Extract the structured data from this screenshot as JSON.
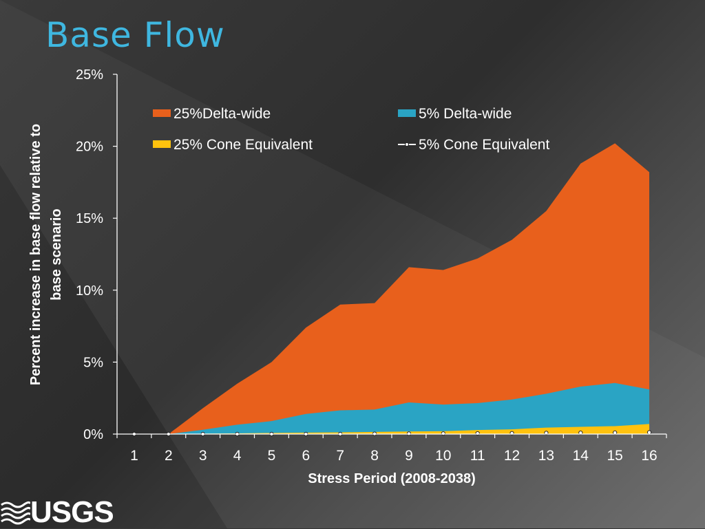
{
  "slide": {
    "title": "Base Flow"
  },
  "logo": {
    "text": "USGS"
  },
  "colors": {
    "title": "#3fb7e0",
    "delta25": "#e8601c",
    "delta5": "#2aa4c4",
    "cone25": "#ffc20e",
    "cone5": "#ffffff"
  },
  "chart_data": {
    "type": "area",
    "xlabel": "Stress Period (2008-2038)",
    "ylabel": "Percent increase in base flow relative to base scenario",
    "ylabel_lines": [
      "Percent increase in base flow relative to",
      "base scenario"
    ],
    "categories": [
      "1",
      "2",
      "3",
      "4",
      "5",
      "6",
      "7",
      "8",
      "9",
      "10",
      "11",
      "12",
      "13",
      "14",
      "15",
      "16"
    ],
    "ylim": [
      0,
      25
    ],
    "yticks": [
      "0%",
      "5%",
      "10%",
      "15%",
      "20%",
      "25%"
    ],
    "grid": false,
    "legend_placement": "top",
    "series": [
      {
        "name": "25%Delta-wide",
        "style": "area",
        "values": [
          0,
          0,
          1.8,
          3.5,
          5.0,
          7.4,
          9.0,
          9.1,
          11.6,
          11.4,
          12.2,
          13.5,
          15.5,
          18.8,
          20.2,
          18.2
        ]
      },
      {
        "name": "5% Delta-wide",
        "style": "area",
        "values": [
          0,
          0,
          0.3,
          0.65,
          0.9,
          1.4,
          1.65,
          1.7,
          2.2,
          2.05,
          2.15,
          2.4,
          2.8,
          3.3,
          3.55,
          3.1
        ]
      },
      {
        "name": "25% Cone Equivalent",
        "style": "area",
        "values": [
          0,
          0,
          0.03,
          0.05,
          0.08,
          0.1,
          0.12,
          0.15,
          0.18,
          0.2,
          0.28,
          0.33,
          0.45,
          0.5,
          0.55,
          0.7
        ]
      },
      {
        "name": "5% Cone Equivalent",
        "style": "line-marker",
        "values": [
          0,
          0,
          0,
          0,
          0,
          0,
          0,
          0.02,
          0.03,
          0.04,
          0.05,
          0.06,
          0.08,
          0.09,
          0.1,
          0.12
        ]
      }
    ]
  }
}
